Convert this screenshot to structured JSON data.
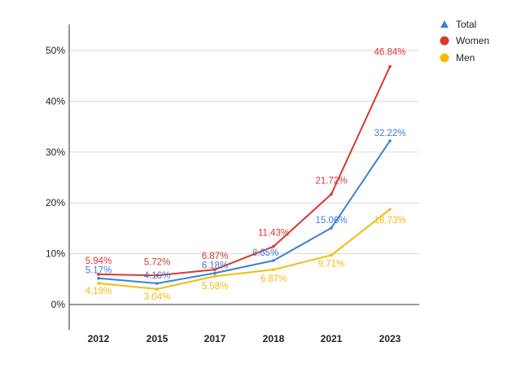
{
  "chart_data": {
    "type": "line",
    "title": "",
    "xlabel": "",
    "ylabel": "",
    "categories": [
      "2012",
      "2015",
      "2017",
      "2018",
      "2021",
      "2023"
    ],
    "ylim": [
      -5,
      55
    ],
    "yticks": [
      0,
      10,
      20,
      30,
      40,
      50
    ],
    "ytick_labels": [
      "0%",
      "10%",
      "20%",
      "30%",
      "40%",
      "50%"
    ],
    "grid": true,
    "legend_position": "top-right",
    "series": [
      {
        "name": "Total",
        "color": "#3d7fd6",
        "marker": "triangle",
        "values": [
          5.17,
          4.16,
          6.18,
          8.65,
          15.06,
          32.22
        ],
        "labels": [
          "5.17%",
          "4.16%",
          "6.18%",
          "8.65%",
          "15.06%",
          "32.22%"
        ]
      },
      {
        "name": "Women",
        "color": "#d9382e",
        "marker": "circle",
        "values": [
          5.94,
          5.72,
          6.87,
          11.43,
          21.72,
          46.84
        ],
        "labels": [
          "5.94%",
          "5.72%",
          "6.87%",
          "11.43%",
          "21.72%",
          "46.84%"
        ]
      },
      {
        "name": "Men",
        "color": "#f2bc0f",
        "marker": "circle",
        "values": [
          4.19,
          3.04,
          5.58,
          6.87,
          9.71,
          18.73
        ],
        "labels": [
          "4.19%",
          "3.04%",
          "5.58%",
          "6.87%",
          "9.71%",
          "18.73%"
        ]
      }
    ]
  }
}
